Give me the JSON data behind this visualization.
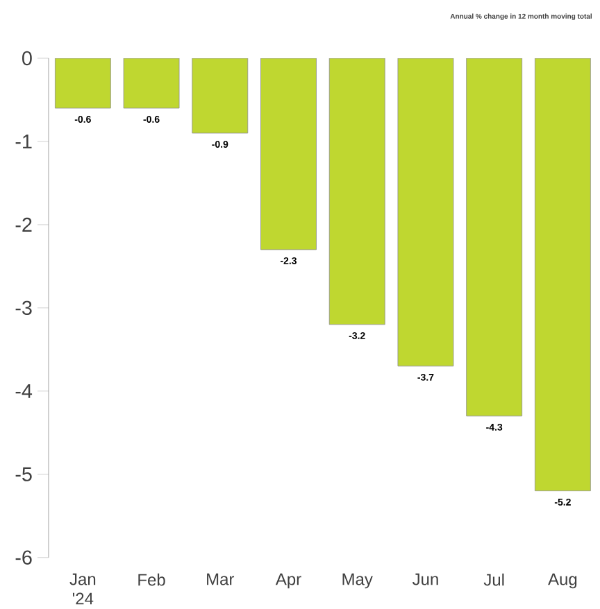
{
  "chart_data": {
    "type": "bar",
    "title": "Annual % change in 12 month moving total",
    "categories": [
      "Jan '24",
      "Feb",
      "Mar",
      "Apr",
      "May",
      "Jun",
      "Jul",
      "Aug"
    ],
    "values": [
      -0.6,
      -0.6,
      -0.9,
      -2.3,
      -3.2,
      -3.7,
      -4.3,
      -5.2
    ],
    "value_labels": [
      "-0.6",
      "-0.6",
      "-0.9",
      "-2.3",
      "-3.2",
      "-3.7",
      "-4.3",
      "-5.2"
    ],
    "color": "#bfd730",
    "ylim": [
      -6,
      0
    ],
    "yticks": [
      -6,
      -5,
      -4,
      -3,
      -2,
      -1,
      0
    ],
    "grid": false
  }
}
